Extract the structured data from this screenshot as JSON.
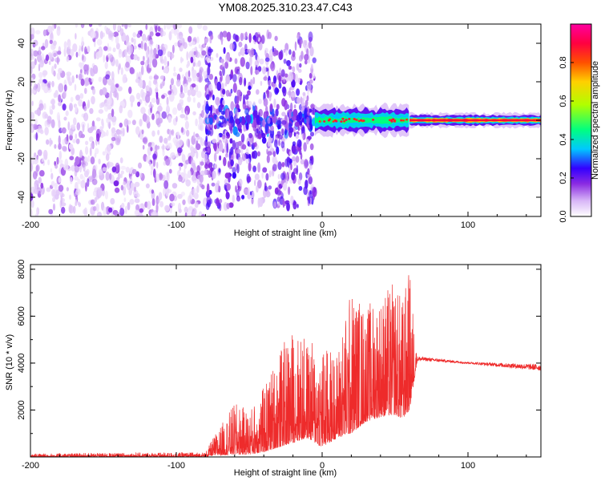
{
  "title": "YM08.2025.310.23.47.C43",
  "chart_data": [
    {
      "type": "heatmap",
      "panel": "spectrogram",
      "xlabel": "Height of straight line (km)",
      "ylabel": "Frequency (Hz)",
      "xlim": [
        -200,
        150
      ],
      "ylim": [
        -50,
        50
      ],
      "xticks": [
        -200,
        -100,
        0,
        100
      ],
      "yticks": [
        -40,
        -20,
        0,
        20,
        40
      ],
      "xtick_labels": [
        "-200",
        "-100",
        "0",
        "100"
      ],
      "ytick_labels": [
        "-40",
        "-20",
        "0",
        "20",
        "40"
      ],
      "colorbar": {
        "label": "Normalized spectral amplitude",
        "range": [
          0,
          1
        ],
        "ticks": [
          0.0,
          0.2,
          0.4,
          0.6,
          0.8
        ],
        "tick_labels": [
          "0.0",
          "0.2",
          "0.4",
          "0.6",
          "0.8"
        ],
        "colors": [
          "#ffffff",
          "#d9b8f7",
          "#8a2be2",
          "#3300ff",
          "#00c8ff",
          "#00ff80",
          "#b0ff00",
          "#ffd000",
          "#ff5000",
          "#ff0040",
          "#ff00a0"
        ]
      },
      "regions": [
        {
          "x_range": [
            -200,
            -80
          ],
          "description_value": "broadband noise",
          "typical_amplitude": 0.1
        },
        {
          "x_range": [
            -80,
            -5
          ],
          "freq_band": [
            -40,
            45
          ],
          "typical_amplitude": 0.2
        },
        {
          "x_range": [
            -5,
            60
          ],
          "freq_center": 0,
          "freq_halfwidth": 4,
          "typical_amplitude": 0.5
        },
        {
          "x_range": [
            60,
            150
          ],
          "freq_center": 0,
          "freq_halfwidth": 2,
          "typical_amplitude": 0.9
        }
      ]
    },
    {
      "type": "line",
      "panel": "snr",
      "xlabel": "Height of straight line (km)",
      "ylabel": "SNR (10 * v/v)",
      "xlim": [
        -200,
        150
      ],
      "ylim": [
        0,
        8200
      ],
      "xticks": [
        -200,
        -100,
        0,
        100
      ],
      "yticks": [
        2000,
        4000,
        6000,
        8000
      ],
      "xtick_labels": [
        "-200",
        "-100",
        "0",
        "100"
      ],
      "ytick_labels": [
        "2000",
        "4000",
        "6000",
        "8000"
      ],
      "color": "#ee2b2b",
      "envelope": {
        "x": [
          -200,
          -80,
          -75,
          -60,
          -50,
          -40,
          -30,
          -20,
          -10,
          0,
          10,
          20,
          30,
          40,
          50,
          55,
          60,
          65,
          70,
          100,
          150
        ],
        "low": [
          0,
          0,
          50,
          100,
          100,
          200,
          400,
          600,
          800,
          400,
          800,
          1000,
          1500,
          1700,
          1800,
          1600,
          2000,
          4000,
          4050,
          3950,
          3600
        ],
        "high": [
          150,
          200,
          800,
          2300,
          2000,
          3000,
          4500,
          5500,
          5000,
          4800,
          4500,
          7300,
          6500,
          7000,
          7500,
          6800,
          8100,
          4300,
          4250,
          4050,
          3950
        ]
      }
    }
  ]
}
